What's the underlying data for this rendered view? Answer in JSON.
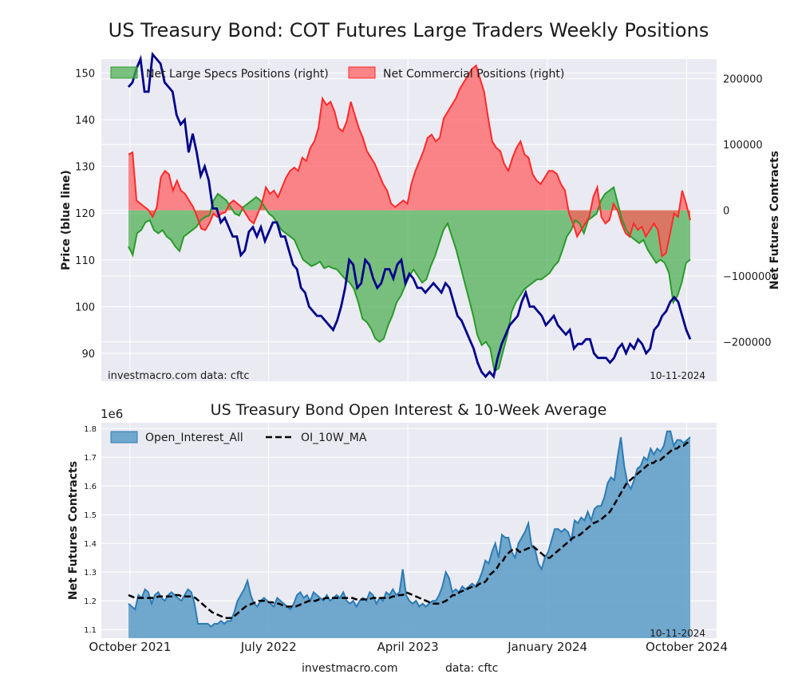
{
  "title": "US Treasury Bond: COT Futures Large Traders Weekly Positions",
  "colors": {
    "plot_bg": "#eaeaf2",
    "grid": "#ffffff",
    "price": "#00008b",
    "specs_line": "#2a9a2a",
    "specs_fill": "#4caf50",
    "comm_line": "#ff2a2a",
    "comm_fill": "#ff5c5c",
    "oi_line": "#2c7bb6",
    "oi_fill": "#5b9bc6"
  },
  "chart_data": [
    {
      "type": "line",
      "title": "US Treasury Bond: COT Futures Large Traders Weekly Positions",
      "ylabel": "Price (blue line)",
      "ylabel_right": "Net Futures Contracts",
      "ylim": [
        84,
        153
      ],
      "ylim_right": [
        -260000,
        230000
      ],
      "yticks": [
        90,
        100,
        110,
        120,
        130,
        140,
        150
      ],
      "yticks_right": [
        -200000,
        -100000,
        0,
        100000,
        200000
      ],
      "ytick_labels_right": [
        "−200000",
        "−100000",
        "0",
        "100000",
        "200000"
      ],
      "legend": [
        {
          "label": "Net Large Specs Positions (right)",
          "key": "specs"
        },
        {
          "label": "Net Commercial Positions (right)",
          "key": "comm"
        }
      ],
      "legend_loc": "top-left",
      "grid": true,
      "footer_left": "investmacro.com    data: cftc",
      "footer_right": "10-11-2024",
      "x_start": "2021-09-28",
      "x_end": "2024-10-08",
      "series": [
        {
          "name": "Price (blue line)",
          "key": "price",
          "values": [
            147,
            148,
            151,
            153,
            146,
            146,
            154,
            153,
            152,
            148,
            147,
            146,
            141,
            139,
            140,
            133,
            137,
            133,
            128,
            130,
            127,
            121,
            121,
            118,
            119,
            117,
            115,
            115,
            111,
            112,
            116,
            117,
            115,
            117,
            114,
            116,
            118,
            118,
            115,
            115,
            112,
            109,
            108,
            104,
            103,
            100,
            99,
            98,
            98,
            97,
            96,
            95,
            97,
            100,
            104,
            110,
            109,
            104,
            105,
            110,
            109,
            106,
            104,
            105,
            108,
            108,
            106,
            109,
            110,
            105,
            107,
            106,
            104,
            104,
            103,
            104,
            105,
            104,
            103,
            105,
            104,
            101,
            98,
            97,
            95,
            93,
            91,
            88,
            86,
            85,
            86,
            85,
            89,
            92,
            94,
            96,
            97,
            98,
            101,
            103,
            100,
            100,
            99,
            98,
            96,
            97,
            98,
            96,
            95,
            94,
            95,
            91,
            92,
            92,
            93,
            93,
            90,
            89,
            89,
            89,
            88,
            89,
            91,
            92,
            90,
            92,
            91,
            93,
            92,
            90,
            91,
            95,
            96,
            98,
            99,
            101,
            102,
            101,
            98,
            95,
            93
          ]
        },
        {
          "name": "Net Large Specs Positions (right)",
          "key": "specs",
          "values": [
            -55000,
            -68000,
            -35000,
            -30000,
            -18000,
            -15000,
            -30000,
            -35000,
            -30000,
            -40000,
            -45000,
            -55000,
            -62000,
            -40000,
            -35000,
            -30000,
            -25000,
            -15000,
            -10000,
            -8000,
            15000,
            25000,
            20000,
            15000,
            5000,
            -5000,
            -8000,
            5000,
            10000,
            15000,
            20000,
            15000,
            5000,
            -5000,
            -10000,
            -20000,
            -30000,
            -35000,
            -40000,
            -45000,
            -60000,
            -75000,
            -80000,
            -85000,
            -82000,
            -78000,
            -88000,
            -85000,
            -88000,
            -90000,
            -98000,
            -105000,
            -110000,
            -120000,
            -140000,
            -165000,
            -170000,
            -180000,
            -195000,
            -200000,
            -195000,
            -175000,
            -160000,
            -140000,
            -130000,
            -115000,
            -100000,
            -90000,
            -100000,
            -110000,
            -105000,
            -85000,
            -70000,
            -50000,
            -30000,
            -20000,
            -40000,
            -60000,
            -85000,
            -110000,
            -135000,
            -160000,
            -190000,
            -205000,
            -200000,
            -210000,
            -245000,
            -240000,
            -215000,
            -190000,
            -155000,
            -140000,
            -130000,
            -120000,
            -115000,
            -110000,
            -105000,
            -105000,
            -100000,
            -95000,
            -85000,
            -78000,
            -60000,
            -40000,
            -30000,
            -15000,
            -20000,
            -35000,
            -15000,
            -10000,
            -5000,
            15000,
            25000,
            30000,
            35000,
            10000,
            -15000,
            -30000,
            -40000,
            -45000,
            -50000,
            -45000,
            -60000,
            -70000,
            -80000,
            -75000,
            -80000,
            -95000,
            -140000,
            -130000,
            -110000,
            -80000,
            -75000
          ]
        },
        {
          "name": "Net Commercial Positions (right)",
          "key": "comm",
          "values": [
            85000,
            88000,
            15000,
            10000,
            5000,
            0,
            -10000,
            5000,
            50000,
            60000,
            55000,
            30000,
            45000,
            30000,
            25000,
            15000,
            5000,
            -10000,
            -28000,
            -30000,
            -20000,
            -5000,
            -10000,
            -5000,
            -3000,
            10000,
            15000,
            10000,
            5000,
            -5000,
            -15000,
            -20000,
            -5000,
            10000,
            35000,
            25000,
            30000,
            20000,
            35000,
            50000,
            60000,
            65000,
            60000,
            80000,
            75000,
            95000,
            105000,
            125000,
            170000,
            160000,
            165000,
            150000,
            125000,
            120000,
            135000,
            165000,
            145000,
            125000,
            110000,
            90000,
            80000,
            70000,
            55000,
            40000,
            30000,
            10000,
            5000,
            10000,
            15000,
            10000,
            40000,
            60000,
            75000,
            90000,
            110000,
            115000,
            105000,
            110000,
            140000,
            150000,
            160000,
            170000,
            185000,
            195000,
            205000,
            215000,
            220000,
            200000,
            180000,
            140000,
            105000,
            95000,
            90000,
            70000,
            60000,
            80000,
            95000,
            105000,
            85000,
            80000,
            55000,
            45000,
            40000,
            50000,
            60000,
            60000,
            55000,
            40000,
            30000,
            -5000,
            -20000,
            -40000,
            -30000,
            -20000,
            -10000,
            20000,
            35000,
            -10000,
            -20000,
            -15000,
            10000,
            0,
            -20000,
            -35000,
            -40000,
            -20000,
            -30000,
            -25000,
            -40000,
            -30000,
            -20000,
            -30000,
            -70000,
            -65000,
            -35000,
            -5000,
            -10000,
            30000,
            10000,
            -15000
          ]
        },
        {
          "name": "Net Large Specs Positions (right)",
          "key": "specs_fill_only",
          "values": []
        }
      ]
    },
    {
      "type": "area",
      "title": "US Treasury Bond Open Interest & 10-Week Average",
      "ylabel": "Net Futures Contracts",
      "y_offset_label": "1e6",
      "ylim": [
        1.07,
        1.82
      ],
      "yticks": [
        1.1,
        1.2,
        1.3,
        1.4,
        1.5,
        1.6,
        1.7,
        1.8
      ],
      "xtick_labels": [
        "October 2021",
        "July 2022",
        "April 2023",
        "January 2024",
        "October 2024"
      ],
      "xtick_dates": [
        "2021-10-01",
        "2022-07-01",
        "2023-04-01",
        "2024-01-01",
        "2024-10-01"
      ],
      "x_start": "2021-09-28",
      "x_end": "2024-10-08",
      "legend": [
        {
          "label": "Open_Interest_All",
          "key": "oi"
        },
        {
          "label": "OI_10W_MA",
          "key": "ma"
        }
      ],
      "legend_loc": "top-left",
      "grid": true,
      "footer_right": "10-11-2024",
      "series": [
        {
          "name": "Open_Interest_All",
          "key": "oi",
          "values": [
            1.19,
            1.18,
            1.17,
            1.22,
            1.21,
            1.24,
            1.23,
            1.19,
            1.22,
            1.23,
            1.21,
            1.2,
            1.22,
            1.23,
            1.22,
            1.21,
            1.2,
            1.22,
            1.24,
            1.23,
            1.19,
            1.12,
            1.12,
            1.12,
            1.12,
            1.11,
            1.12,
            1.12,
            1.13,
            1.12,
            1.13,
            1.13,
            1.16,
            1.2,
            1.22,
            1.24,
            1.27,
            1.22,
            1.19,
            1.18,
            1.2,
            1.21,
            1.2,
            1.19,
            1.18,
            1.21,
            1.2,
            1.19,
            1.18,
            1.17,
            1.19,
            1.22,
            1.23,
            1.21,
            1.22,
            1.2,
            1.23,
            1.22,
            1.21,
            1.2,
            1.22,
            1.2,
            1.21,
            1.22,
            1.21,
            1.23,
            1.2,
            1.19,
            1.2,
            1.18,
            1.2,
            1.21,
            1.2,
            1.23,
            1.22,
            1.19,
            1.21,
            1.2,
            1.23,
            1.22,
            1.24,
            1.22,
            1.23,
            1.31,
            1.22,
            1.2,
            1.19,
            1.2,
            1.18,
            1.19,
            1.18,
            1.19,
            1.2,
            1.2,
            1.22,
            1.25,
            1.3,
            1.28,
            1.23,
            1.24,
            1.23,
            1.25,
            1.24,
            1.25,
            1.26,
            1.25,
            1.27,
            1.3,
            1.34,
            1.33,
            1.37,
            1.4,
            1.35,
            1.43,
            1.42,
            1.42,
            1.37,
            1.35,
            1.4,
            1.42,
            1.44,
            1.47,
            1.39,
            1.38,
            1.33,
            1.31,
            1.35,
            1.37,
            1.41,
            1.45,
            1.45,
            1.44,
            1.45,
            1.44,
            1.41,
            1.48,
            1.47,
            1.49,
            1.48,
            1.51,
            1.48,
            1.52,
            1.53,
            1.53,
            1.56,
            1.61,
            1.63,
            1.62,
            1.7,
            1.77,
            1.67,
            1.61,
            1.59,
            1.62,
            1.66,
            1.67,
            1.7,
            1.69,
            1.73,
            1.71,
            1.73,
            1.72,
            1.74,
            1.79,
            1.79,
            1.74,
            1.76,
            1.76,
            1.75,
            1.76,
            1.77
          ]
        },
        {
          "name": "OI_10W_MA",
          "key": "ma",
          "values": [
            1.22,
            1.215,
            1.21,
            1.21,
            1.21,
            1.21,
            1.21,
            1.21,
            1.21,
            1.215,
            1.215,
            1.215,
            1.215,
            1.215,
            1.22,
            1.22,
            1.215,
            1.215,
            1.215,
            1.215,
            1.21,
            1.2,
            1.19,
            1.18,
            1.17,
            1.16,
            1.155,
            1.15,
            1.145,
            1.14,
            1.14,
            1.14,
            1.15,
            1.16,
            1.17,
            1.18,
            1.185,
            1.19,
            1.195,
            1.2,
            1.2,
            1.2,
            1.195,
            1.195,
            1.19,
            1.19,
            1.185,
            1.18,
            1.18,
            1.18,
            1.18,
            1.185,
            1.19,
            1.195,
            1.2,
            1.2,
            1.2,
            1.205,
            1.205,
            1.21,
            1.21,
            1.21,
            1.21,
            1.21,
            1.21,
            1.21,
            1.21,
            1.21,
            1.205,
            1.205,
            1.205,
            1.205,
            1.205,
            1.21,
            1.21,
            1.21,
            1.21,
            1.21,
            1.21,
            1.215,
            1.215,
            1.22,
            1.22,
            1.23,
            1.225,
            1.22,
            1.215,
            1.21,
            1.205,
            1.2,
            1.195,
            1.19,
            1.19,
            1.19,
            1.195,
            1.2,
            1.21,
            1.22,
            1.22,
            1.23,
            1.235,
            1.24,
            1.245,
            1.25,
            1.25,
            1.26,
            1.26,
            1.27,
            1.29,
            1.3,
            1.31,
            1.33,
            1.34,
            1.36,
            1.37,
            1.38,
            1.38,
            1.37,
            1.375,
            1.38,
            1.385,
            1.39,
            1.38,
            1.37,
            1.36,
            1.35,
            1.35,
            1.36,
            1.37,
            1.38,
            1.39,
            1.4,
            1.41,
            1.42,
            1.425,
            1.43,
            1.44,
            1.45,
            1.46,
            1.47,
            1.475,
            1.48,
            1.49,
            1.5,
            1.51,
            1.53,
            1.55,
            1.57,
            1.59,
            1.61,
            1.62,
            1.63,
            1.64,
            1.65,
            1.66,
            1.67,
            1.68,
            1.68,
            1.69,
            1.69,
            1.7,
            1.71,
            1.72,
            1.73,
            1.73,
            1.74,
            1.74,
            1.75,
            1.755
          ]
        }
      ]
    }
  ],
  "bottom_footer": {
    "left": "investmacro.com",
    "right": "data: cftc"
  }
}
